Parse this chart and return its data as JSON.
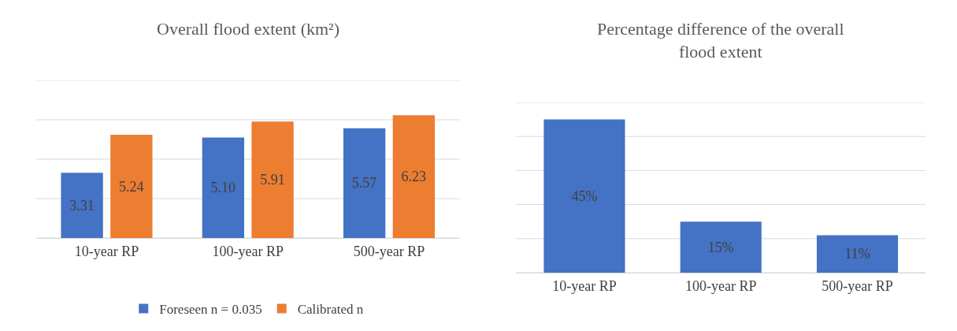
{
  "chart_data": [
    {
      "type": "bar",
      "title": "Overall flood extent (km²)",
      "categories": [
        "10-year RP",
        "100-year RP",
        "500-year RP"
      ],
      "series": [
        {
          "name": "Foreseen n = 0.035",
          "color": "#4472c4",
          "values": [
            3.31,
            5.1,
            5.57
          ],
          "value_labels": [
            "3.31",
            "5.10",
            "5.57"
          ]
        },
        {
          "name": "Calibrated n",
          "color": "#ed7d31",
          "values": [
            5.24,
            5.91,
            6.23
          ],
          "value_labels": [
            "5.24",
            "5.91",
            "6.23"
          ]
        }
      ],
      "ylim": [
        0,
        8
      ],
      "yticks": [
        {
          "value": 0,
          "label": null
        },
        {
          "value": 2,
          "label": null
        },
        {
          "value": 4,
          "label": null
        },
        {
          "value": 6,
          "label": null
        },
        {
          "value": 8,
          "label": null
        }
      ],
      "grid": "y",
      "legend": "bottom",
      "tick_labels": "x"
    },
    {
      "type": "bar",
      "title": "Percentage difference of the overall flood extent",
      "categories": [
        "10-year RP",
        "100-year RP",
        "500-year RP"
      ],
      "series": [
        {
          "color": "#4472c4",
          "values": [
            45,
            15,
            11
          ],
          "value_labels": [
            "45%",
            "15%",
            "11%"
          ]
        }
      ],
      "ylim": [
        0,
        50
      ],
      "yticks": [
        {
          "value": 0,
          "label": null
        },
        {
          "value": 10,
          "label": null
        },
        {
          "value": 20,
          "label": null
        },
        {
          "value": 30,
          "label": null
        },
        {
          "value": 40,
          "label": null
        },
        {
          "value": 50,
          "label": null
        }
      ],
      "grid": "y",
      "tick_labels": "x"
    }
  ]
}
